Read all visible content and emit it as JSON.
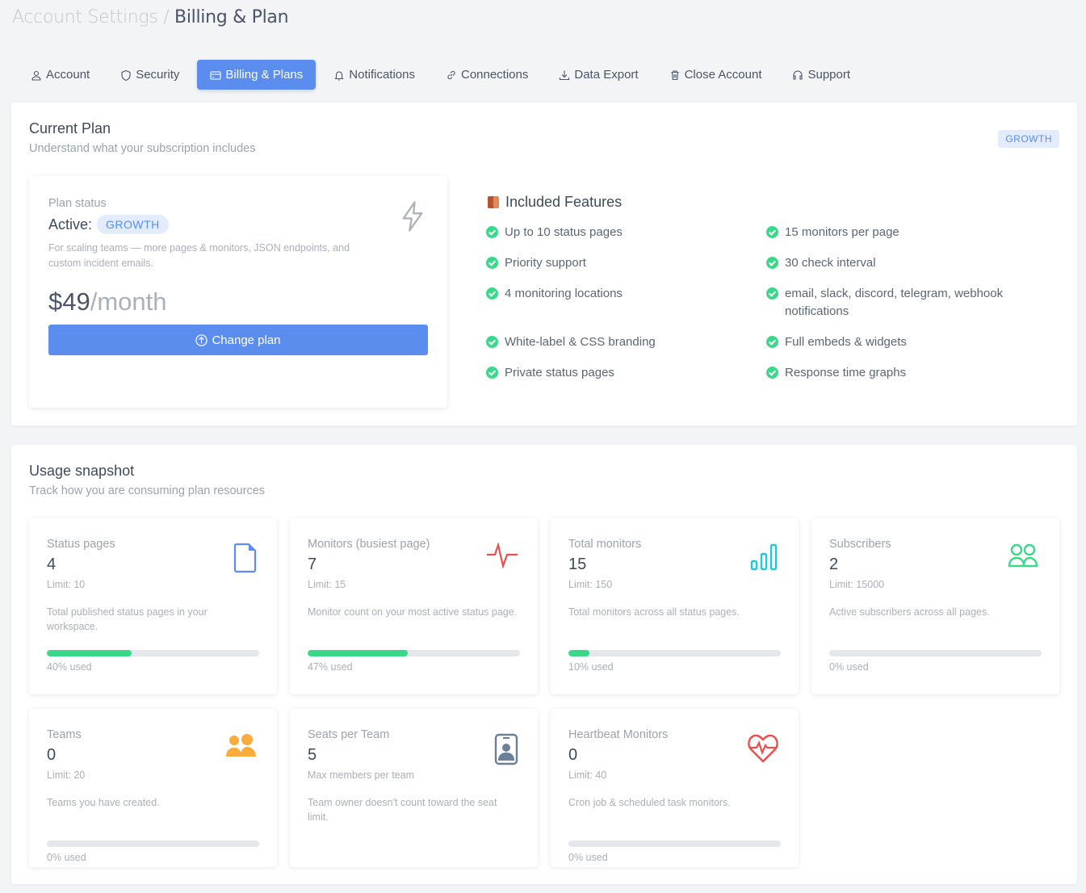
{
  "breadcrumb": {
    "parent": "Account Settings",
    "separator": "/",
    "current": "Billing & Plan"
  },
  "tabs": [
    {
      "label": "Account",
      "icon": "user-icon"
    },
    {
      "label": "Security",
      "icon": "shield-icon"
    },
    {
      "label": "Billing & Plans",
      "icon": "credit-card-icon",
      "active": true
    },
    {
      "label": "Notifications",
      "icon": "bell-icon"
    },
    {
      "label": "Connections",
      "icon": "link-icon"
    },
    {
      "label": "Data Export",
      "icon": "download-icon"
    },
    {
      "label": "Close Account",
      "icon": "trash-icon"
    },
    {
      "label": "Support",
      "icon": "headset-icon"
    }
  ],
  "current_plan": {
    "title": "Current Plan",
    "subtitle": "Understand what your subscription includes",
    "badge": "GROWTH",
    "status_label": "Plan status",
    "active_label": "Active:",
    "plan_name": "GROWTH",
    "description": "For scaling teams — more pages & monitors, JSON endpoints, and custom incident emails.",
    "price": "$49",
    "period": "/month",
    "change_button": "Change plan",
    "features_title": "Included Features",
    "features": [
      "Up to 10 status pages",
      "15 monitors per page",
      "Priority support",
      "30 check interval",
      "4 monitoring locations",
      "email, slack, discord, telegram, webhook notifications",
      "White-label & CSS branding",
      "Full embeds & widgets",
      "Private status pages",
      "Response time graphs"
    ]
  },
  "usage": {
    "title": "Usage snapshot",
    "subtitle": "Track how you are consuming plan resources",
    "cards": [
      {
        "title": "Status pages",
        "value": "4",
        "limit": "Limit: 10",
        "description": "Total published status pages in your workspace.",
        "percent": 40,
        "used": "40% used",
        "icon": "file-icon",
        "color": "#5b8def"
      },
      {
        "title": "Monitors (busiest page)",
        "value": "7",
        "limit": "Limit: 15",
        "description": "Monitor count on your most active status page.",
        "percent": 47,
        "used": "47% used",
        "icon": "pulse-icon",
        "color": "#f04c4c"
      },
      {
        "title": "Total monitors",
        "value": "15",
        "limit": "Limit: 150",
        "description": "Total monitors across all status pages.",
        "percent": 10,
        "used": "10% used",
        "icon": "bar-chart-icon",
        "color": "#1ec8d8"
      },
      {
        "title": "Subscribers",
        "value": "2",
        "limit": "Limit: 15000",
        "description": "Active subscribers across all pages.",
        "percent": 0,
        "used": "0% used",
        "icon": "users-icon",
        "color": "#3ad98a"
      },
      {
        "title": "Teams",
        "value": "0",
        "limit": "Limit: 20",
        "description": "Teams you have created.",
        "percent": 0,
        "used": "0% used",
        "icon": "team-icon",
        "color": "#fbaa3c"
      },
      {
        "title": "Seats per Team",
        "value": "5",
        "limit": "",
        "description": "Max members per team",
        "note": "Team owner doesn't count toward the seat limit.",
        "icon": "id-badge-icon",
        "color": "#6b7f99"
      },
      {
        "title": "Heartbeat Monitors",
        "value": "0",
        "limit": "Limit: 40",
        "description": "Cron job & scheduled task monitors.",
        "percent": 0,
        "used": "0% used",
        "icon": "heartbeat-icon",
        "color": "#f04c4c"
      }
    ]
  }
}
